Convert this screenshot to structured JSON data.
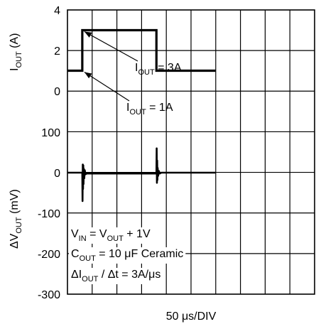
{
  "chart_data": [
    {
      "type": "line",
      "panel": "current",
      "ylabel": "I_OUT (A)",
      "ylim": [
        0,
        4
      ],
      "yticks": [
        "4",
        "2",
        "0"
      ],
      "x_divisions": 10,
      "grid": true,
      "series": [
        {
          "x": [
            0,
            0.6,
            0.6,
            3.6,
            3.6,
            6.0
          ],
          "y": [
            1,
            1,
            3,
            3,
            1,
            1
          ]
        }
      ],
      "annotations": [
        {
          "main": "I",
          "sub": "OUT",
          "rest": " = 3A",
          "target_x": 0.6,
          "target_y": 3
        },
        {
          "main": "I",
          "sub": "OUT",
          "rest": " = 1A",
          "target_x": 0.6,
          "target_y": 1
        }
      ]
    },
    {
      "type": "line",
      "panel": "voltage",
      "ylabel": "ΔV_OUT (mV)",
      "ylim": [
        -300,
        100
      ],
      "yticks": [
        "100",
        "0",
        "-100",
        "-200",
        "-300"
      ],
      "x_divisions": 10,
      "grid": true,
      "series": [
        {
          "x": [
            0,
            0.6,
            0.61,
            0.62,
            0.63,
            0.64,
            0.65,
            0.66,
            0.68,
            0.7,
            0.73,
            0.78,
            0.85,
            3.6,
            3.61,
            3.62,
            3.63,
            3.64,
            3.65,
            3.67,
            3.7,
            3.74,
            3.8,
            6.0
          ],
          "y": [
            0,
            0,
            -70,
            20,
            -40,
            18,
            -28,
            10,
            -14,
            6,
            -4,
            -2,
            -2,
            -2,
            60,
            -25,
            30,
            -18,
            12,
            -8,
            4,
            -2,
            0,
            0
          ]
        }
      ],
      "annotations": [
        {
          "p1": "V",
          "s1": "IN",
          "p2": " = V",
          "s2": "OUT",
          "p3": " + 1V"
        },
        {
          "p1": "C",
          "s1": "OUT",
          "p2": " = 10 μF Ceramic"
        },
        {
          "p1": "ΔI",
          "s1": "OUT",
          "p2": " / Δt = 3A/μs"
        }
      ]
    }
  ],
  "xlabel": "50 μs/DIV"
}
